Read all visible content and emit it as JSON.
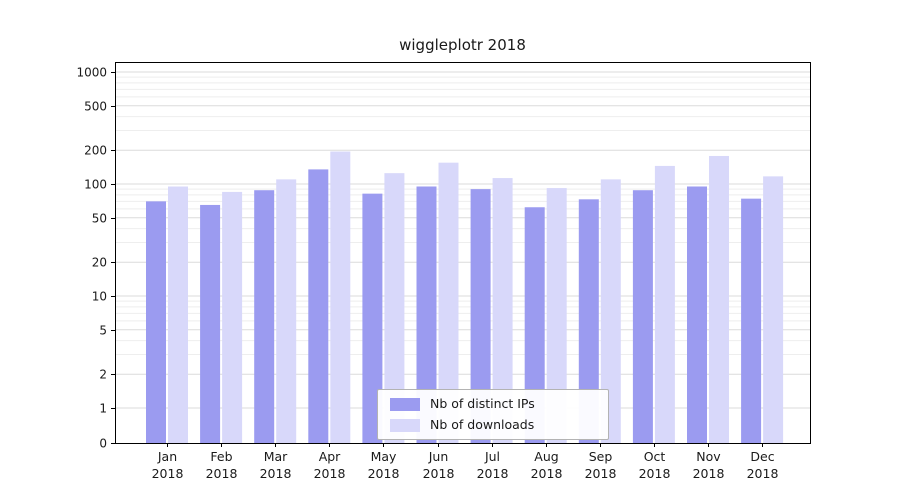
{
  "title": "wiggleplotr 2018",
  "chart_data": {
    "type": "bar",
    "categories": [
      "Jan",
      "Feb",
      "Mar",
      "Apr",
      "May",
      "Jun",
      "Jul",
      "Aug",
      "Sep",
      "Oct",
      "Nov",
      "Dec"
    ],
    "year_label": "2018",
    "series": [
      {
        "name": "Nb of distinct IPs",
        "color": "#9b9bf0",
        "values": [
          70,
          65,
          88,
          135,
          82,
          95,
          90,
          62,
          73,
          88,
          95,
          74
        ]
      },
      {
        "name": "Nb of downloads",
        "color": "#d8d8fa",
        "values": [
          95,
          85,
          110,
          195,
          125,
          155,
          113,
          92,
          110,
          145,
          178,
          117
        ]
      }
    ],
    "yticks": [
      0,
      1,
      2,
      5,
      10,
      20,
      50,
      100,
      200,
      500,
      1000
    ],
    "scale": "symlog",
    "ylim": [
      0,
      1300
    ],
    "xlabel": "",
    "ylabel": "",
    "grid": true,
    "legend_position": "bottom-center",
    "colors": {
      "axis": "#000000",
      "grid_major": "#dbdbdb",
      "grid_minor": "#eeeeee",
      "text": "#1a1a1a"
    }
  }
}
